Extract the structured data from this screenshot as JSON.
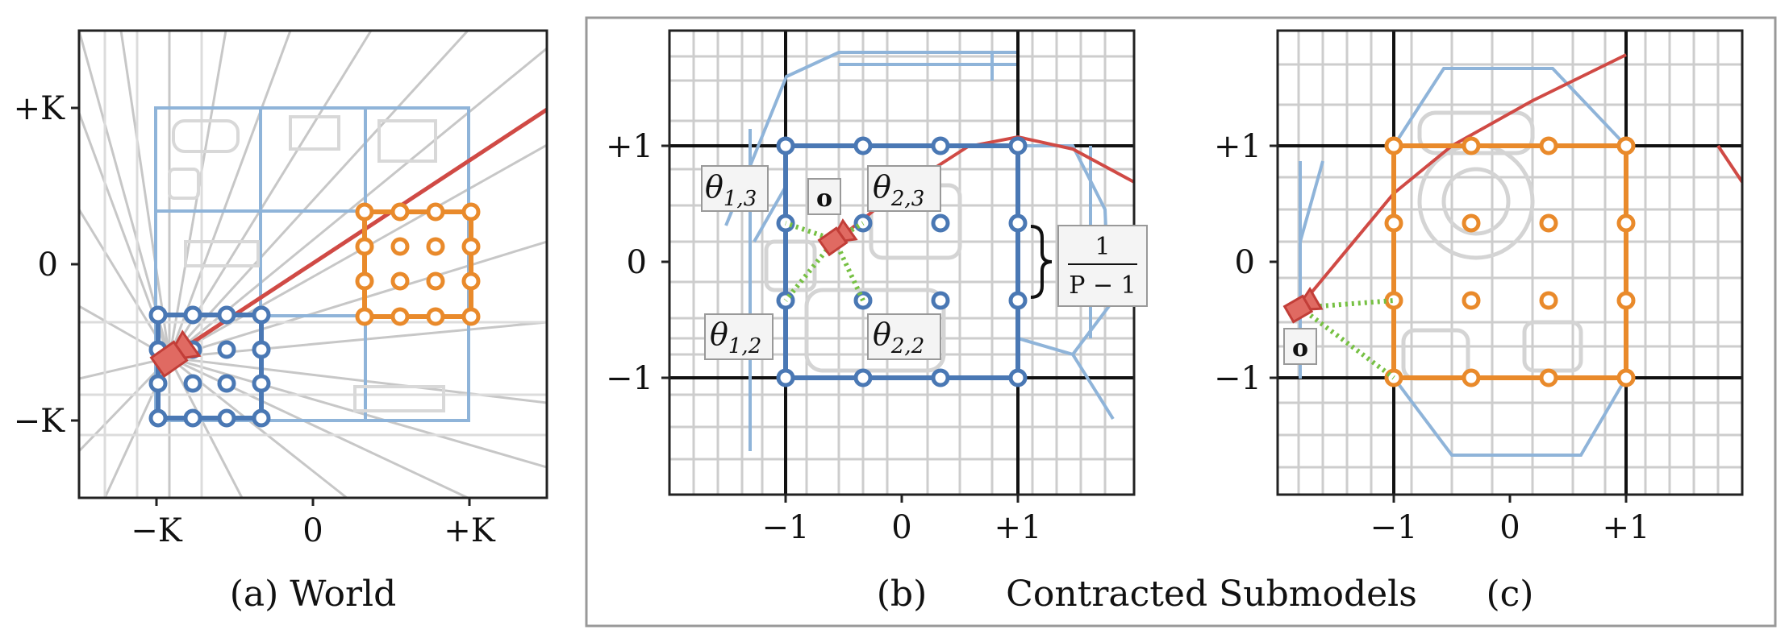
{
  "panel_a": {
    "yticks": [
      "+K",
      "0",
      "−K"
    ],
    "xticks": [
      "−K",
      "0",
      "+K"
    ],
    "caption": "(a) World"
  },
  "panel_b": {
    "yticks": [
      "+1",
      "0",
      "−1"
    ],
    "xticks": [
      "−1",
      "0",
      "+1"
    ],
    "caption": "(b)",
    "origin_label": "o",
    "theta_1_3": {
      "sym": "θ",
      "sub": "1,3"
    },
    "theta_2_3": {
      "sym": "θ",
      "sub": "2,3"
    },
    "theta_1_2": {
      "sym": "θ",
      "sub": "1,2"
    },
    "theta_2_2": {
      "sym": "θ",
      "sub": "2,2"
    },
    "fraction": {
      "numerator": "1",
      "denominator": "P − 1"
    }
  },
  "panel_c": {
    "yticks": [
      "+1",
      "0",
      "−1"
    ],
    "xticks": [
      "−1",
      "0",
      "+1"
    ],
    "caption": "(c)",
    "origin_label": "o"
  },
  "group_caption": "Contracted Submodels",
  "colors": {
    "blue": "#4a78b4",
    "light_blue": "#8fb4d9",
    "orange": "#e98a2b",
    "red": "#d04a45",
    "green": "#76c043",
    "grid": "#c8c8c8",
    "frame": "#999999"
  }
}
